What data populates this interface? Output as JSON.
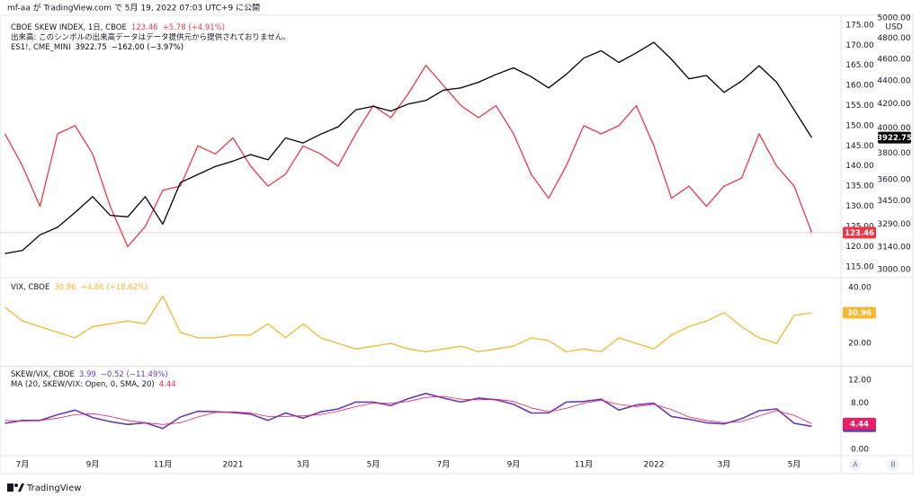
{
  "header": {
    "text": "mf-aa が TradingView.com で 5月 19, 2022 07:03 UTC+9 に公開"
  },
  "footer": {
    "brand": "TradingView"
  },
  "scale_buttons": [
    "A",
    "B"
  ],
  "chart_data": [
    {
      "type": "line",
      "grid": false,
      "annotation": "出来高: このシンボルの出来高データはデータ提供元から提供されておりません。",
      "ylim": [
        112.5,
        177.2
      ],
      "yticks": [
        {
          "value": 115,
          "label": "115.00"
        },
        {
          "value": 120,
          "label": "120.00"
        },
        {
          "value": 125,
          "label": "125.00"
        },
        {
          "value": 130,
          "label": "130.00"
        },
        {
          "value": 135,
          "label": "135.00"
        },
        {
          "value": 140,
          "label": "140.00"
        },
        {
          "value": 145,
          "label": "145.00"
        },
        {
          "value": 150,
          "label": "150.00"
        },
        {
          "value": 155,
          "label": "155.00"
        },
        {
          "value": 160,
          "label": "160.00"
        },
        {
          "value": 165,
          "label": "165.00"
        },
        {
          "value": 170,
          "label": "170.00"
        },
        {
          "value": 175,
          "label": "175.00"
        }
      ],
      "y2lim": [
        2957,
        5020
      ],
      "y2_log": true,
      "y2_unit": "USD",
      "y2ticks": [
        {
          "value": 3000,
          "label": "3000.00"
        },
        {
          "value": 3140,
          "label": "3140.00"
        },
        {
          "value": 3290,
          "label": "3290.00"
        },
        {
          "value": 3450,
          "label": "3450.00"
        },
        {
          "value": 3600,
          "label": "3600.00"
        },
        {
          "value": 3800,
          "label": "3800.00"
        },
        {
          "value": 4000,
          "label": "4000.00"
        },
        {
          "value": 4200,
          "label": "4200.00"
        },
        {
          "value": 4400,
          "label": "4400.00"
        },
        {
          "value": 4600,
          "label": "4600.00"
        },
        {
          "value": 4800,
          "label": "4800.00"
        },
        {
          "value": 5000,
          "label": "5000.00"
        }
      ],
      "series": [
        {
          "name": "CBOE SKEW INDEX, 1日, CBOE",
          "color": "#f23645",
          "change": "+5.78 (+4.91%)",
          "price_line": true,
          "values": [
            148,
            140,
            130,
            148,
            150,
            143,
            130,
            120,
            125,
            134,
            135,
            145,
            143,
            147,
            140,
            135,
            138,
            145,
            143,
            140,
            148,
            155,
            152,
            158,
            165,
            160,
            155,
            152,
            155,
            148,
            138,
            132,
            140,
            150,
            148,
            150,
            155,
            145,
            132,
            135,
            130,
            135,
            137,
            148,
            140,
            135,
            123.46
          ]
        },
        {
          "name": "ES1!, CME_MINI",
          "color": "#000000",
          "axis": "y2",
          "change": "−162.00 (−3.97%)",
          "values": [
            3100,
            3120,
            3220,
            3270,
            3370,
            3480,
            3350,
            3340,
            3480,
            3290,
            3580,
            3640,
            3700,
            3740,
            3790,
            3750,
            3920,
            3880,
            3950,
            4010,
            4150,
            4180,
            4140,
            4200,
            4230,
            4320,
            4340,
            4390,
            4460,
            4520,
            4440,
            4340,
            4460,
            4610,
            4680,
            4570,
            4660,
            4760,
            4600,
            4420,
            4450,
            4300,
            4400,
            4540,
            4390,
            4150,
            3922.75
          ]
        }
      ]
    },
    {
      "type": "line",
      "grid": false,
      "ylim": [
        12.3,
        43.2
      ],
      "yticks": [
        {
          "value": 20,
          "label": "20.00"
        },
        {
          "value": 40,
          "label": "40.00"
        }
      ],
      "series": [
        {
          "name": "VIX, CBOE",
          "color": "#f5b82e",
          "change": "+4.86 (+18.62%)",
          "values": [
            33,
            28,
            26,
            24,
            22,
            26,
            27,
            28,
            27,
            37,
            24,
            22,
            22,
            23,
            23,
            27,
            22,
            27,
            22,
            20,
            18,
            19,
            20,
            18,
            17,
            18,
            19,
            17,
            18,
            19,
            22,
            21,
            17,
            18,
            17,
            22,
            20,
            18,
            23,
            26,
            28,
            31,
            26,
            22,
            20,
            30,
            30.96
          ]
        }
      ]
    },
    {
      "type": "line",
      "grid": false,
      "ylim": [
        -0.97,
        14.2
      ],
      "yticks": [
        {
          "value": 0,
          "label": "0.00"
        },
        {
          "value": 4,
          "label": "4.00"
        },
        {
          "value": 8,
          "label": "8.00"
        },
        {
          "value": 12,
          "label": "12.00"
        }
      ],
      "categories": [
        null,
        "7月",
        null,
        null,
        null,
        "9月",
        null,
        null,
        null,
        "11月",
        null,
        null,
        null,
        "2021",
        null,
        null,
        null,
        "3月",
        null,
        null,
        null,
        "5月",
        null,
        null,
        null,
        "7月",
        null,
        null,
        null,
        "9月",
        null,
        null,
        null,
        "11月",
        null,
        null,
        null,
        "2022",
        null,
        null,
        null,
        "3月",
        null,
        null,
        null,
        "5月",
        null
      ],
      "series": [
        {
          "name": "SKEW/VIX, CBOE",
          "color": "#673ab7",
          "change": "−0.52 (−11.49%)",
          "width": 1.6,
          "values": [
            4.5,
            5,
            5,
            6,
            6.8,
            5.5,
            4.8,
            4.3,
            4.6,
            3.6,
            5.6,
            6.6,
            6.5,
            6.4,
            6.1,
            5,
            6.3,
            5.4,
            6.5,
            7,
            8.2,
            8.2,
            7.6,
            8.8,
            9.7,
            8.9,
            8.2,
            8.9,
            8.6,
            7.8,
            6.3,
            6.3,
            8.2,
            8.3,
            8.7,
            6.8,
            7.7,
            8,
            5.7,
            5.2,
            4.6,
            4.4,
            5.3,
            6.7,
            7,
            4.5,
            3.99
          ]
        },
        {
          "name": "MA (20, SKEW/VIX: Open, 0, SMA, 20)",
          "color": "#e91e63",
          "width": 0.8,
          "values": [
            5.0,
            4.9,
            5.0,
            5.4,
            6.0,
            6.2,
            5.7,
            5.0,
            4.6,
            4.3,
            4.6,
            5.6,
            6.4,
            6.5,
            6.3,
            5.7,
            5.7,
            5.8,
            6.0,
            6.6,
            7.4,
            8.0,
            8.0,
            8.3,
            9.0,
            9.2,
            8.7,
            8.6,
            8.7,
            8.3,
            7.2,
            6.5,
            7.1,
            8.0,
            8.5,
            7.8,
            7.4,
            7.8,
            6.9,
            5.6,
            5.0,
            4.6,
            4.8,
            5.8,
            6.7,
            5.9,
            4.44
          ]
        }
      ]
    }
  ]
}
